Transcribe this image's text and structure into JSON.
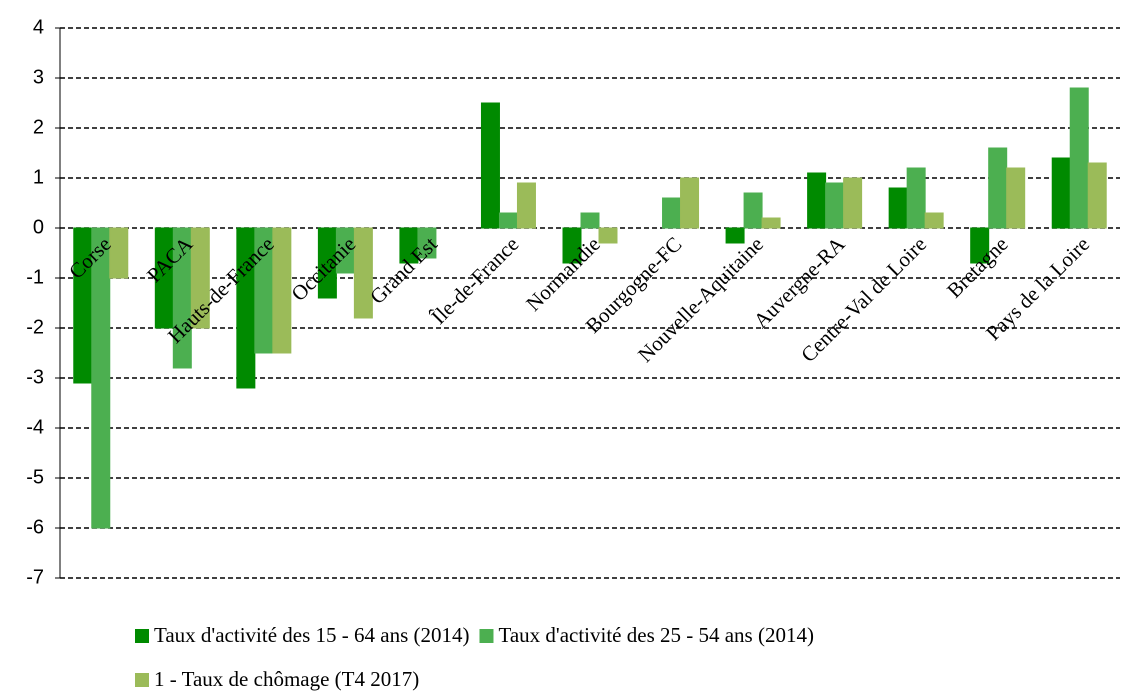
{
  "chart_data": {
    "type": "bar",
    "categories": [
      "Corse",
      "PACA",
      "Hauts-de-France",
      "Occitanie",
      "Grand Est",
      "Île-de-France",
      "Normandie",
      "Bourgogne-FC",
      "Nouvelle-Aquitaine",
      "Auvergne-RA",
      "Centre-Val de Loire",
      "Bretagne",
      "Pays de la Loire"
    ],
    "series": [
      {
        "name": "Taux d'activité des 15 - 64 ans (2014)",
        "color": "#008a00",
        "values": [
          -3.1,
          -2.0,
          -3.2,
          -1.4,
          -0.7,
          2.5,
          -0.7,
          0,
          -0.3,
          1.1,
          0.8,
          -0.7,
          1.4
        ]
      },
      {
        "name": "Taux d'activité des 25 - 54 ans (2014)",
        "color": "#4caf50",
        "values": [
          -6.0,
          -2.8,
          -2.5,
          -0.9,
          -0.6,
          0.3,
          0.3,
          0.6,
          0.7,
          0.9,
          1.2,
          1.6,
          2.8
        ]
      },
      {
        "name": "1 - Taux de chômage (T4 2017)",
        "color": "#9bbb59",
        "values": [
          -1.0,
          -2.0,
          -2.5,
          -1.8,
          0,
          0.9,
          -0.3,
          1.0,
          0.2,
          1.0,
          0.3,
          1.2,
          1.3
        ]
      }
    ],
    "ylim": [
      -7,
      4
    ],
    "yticks": [
      -7,
      -6,
      -5,
      -4,
      -3,
      -2,
      -1,
      0,
      1,
      2,
      3,
      4
    ],
    "grid": true,
    "legend": "bottom"
  }
}
